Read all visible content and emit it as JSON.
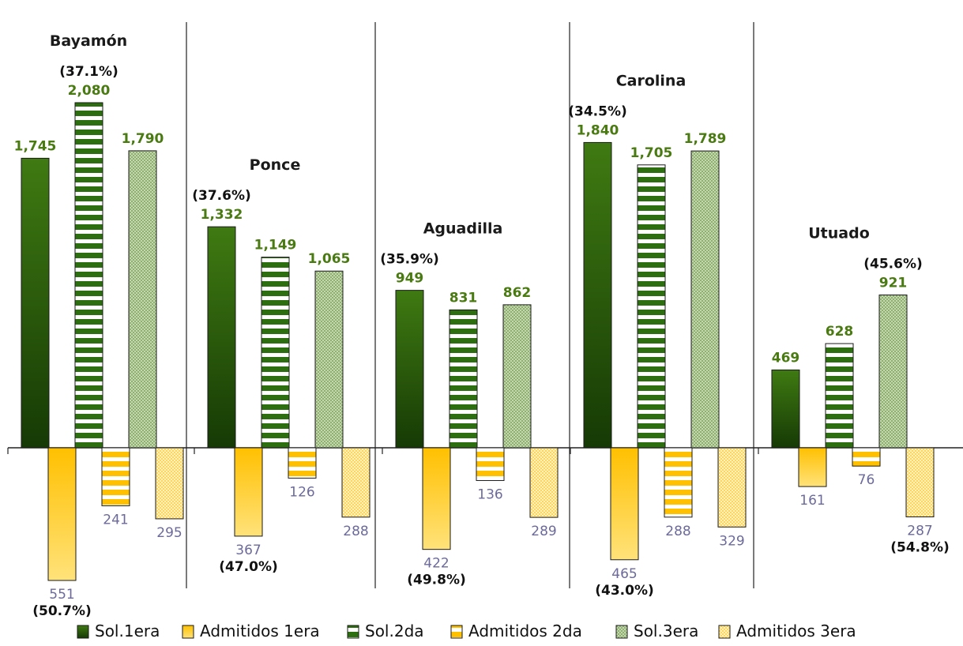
{
  "chart_data": {
    "type": "bar",
    "categories": [
      "Bayamón",
      "Ponce",
      "Aguadilla",
      "Carolina",
      "Utuado"
    ],
    "series": [
      {
        "name": "Sol.1era",
        "values": [
          1745,
          1332,
          949,
          1840,
          469
        ],
        "labels": [
          "1,745",
          "1,332",
          "949",
          "1,840",
          "469"
        ],
        "direction": "up",
        "color": "#3a6b10"
      },
      {
        "name": "Admitidos 1era",
        "values": [
          551,
          367,
          422,
          465,
          161
        ],
        "labels": [
          "551",
          "367",
          "422",
          "465",
          "161"
        ],
        "direction": "down",
        "color": "#ffc000"
      },
      {
        "name": "Sol.2da",
        "values": [
          2080,
          1149,
          831,
          1705,
          628
        ],
        "labels": [
          "2,080",
          "1,149",
          "831",
          "1,705",
          "628"
        ],
        "direction": "up",
        "color": "#2d6e10"
      },
      {
        "name": "Admitidos 2da",
        "values": [
          241,
          126,
          136,
          288,
          76
        ],
        "labels": [
          "241",
          "126",
          "136",
          "288",
          "76"
        ],
        "direction": "down",
        "color": "#ffc000"
      },
      {
        "name": "Sol.3era",
        "values": [
          1790,
          1065,
          862,
          1789,
          921
        ],
        "labels": [
          "1,790",
          "1,065",
          "862",
          "1,789",
          "921"
        ],
        "direction": "up",
        "color": "#a8c48c"
      },
      {
        "name": "Admitidos 3era",
        "values": [
          295,
          288,
          289,
          329,
          287
        ],
        "labels": [
          "295",
          "288",
          "289",
          "329",
          "287"
        ],
        "direction": "down",
        "color": "#ffe07a"
      }
    ],
    "annotations": {
      "top_percent": [
        "(37.1%)",
        "(37.6%)",
        "(35.9%)",
        "(34.5%)",
        "(45.6%)"
      ],
      "bottom_percent": [
        "(50.7%)",
        "(47.0%)",
        "(49.8%)",
        "(43.0%)",
        "(54.8%)"
      ]
    },
    "legend_position": "bottom",
    "grid": false,
    "title": "",
    "xlabel": "",
    "ylabel": ""
  }
}
